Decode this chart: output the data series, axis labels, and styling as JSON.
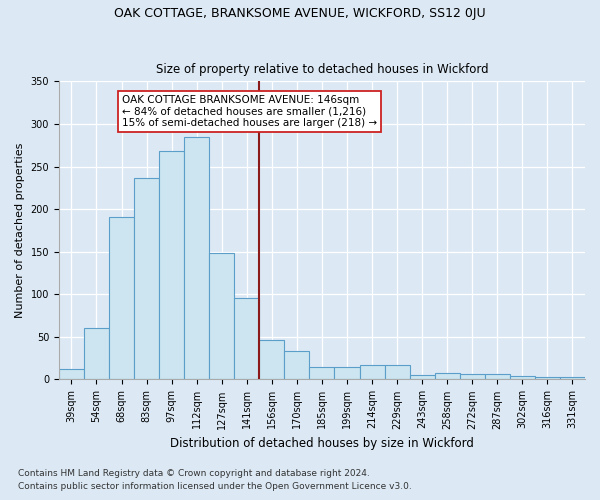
{
  "title": "OAK COTTAGE, BRANKSOME AVENUE, WICKFORD, SS12 0JU",
  "subtitle": "Size of property relative to detached houses in Wickford",
  "xlabel": "Distribution of detached houses by size in Wickford",
  "ylabel": "Number of detached properties",
  "footnote1": "Contains HM Land Registry data © Crown copyright and database right 2024.",
  "footnote2": "Contains public sector information licensed under the Open Government Licence v3.0.",
  "categories": [
    "39sqm",
    "54sqm",
    "68sqm",
    "83sqm",
    "97sqm",
    "112sqm",
    "127sqm",
    "141sqm",
    "156sqm",
    "170sqm",
    "185sqm",
    "199sqm",
    "214sqm",
    "229sqm",
    "243sqm",
    "258sqm",
    "272sqm",
    "287sqm",
    "302sqm",
    "316sqm",
    "331sqm"
  ],
  "values": [
    12,
    60,
    191,
    237,
    268,
    285,
    148,
    96,
    46,
    33,
    15,
    15,
    17,
    17,
    5,
    8,
    6,
    6,
    4,
    3,
    3
  ],
  "bar_color": "#cce5f0",
  "bar_edge_color": "#5b9ec9",
  "vline_pos": 7.5,
  "vline_color": "#8b1a1a",
  "annotation_line1": "OAK COTTAGE BRANKSOME AVENUE: 146sqm",
  "annotation_line2": "← 84% of detached houses are smaller (1,216)",
  "annotation_line3": "15% of semi-detached houses are larger (218) →",
  "ylim": [
    0,
    350
  ],
  "yticks": [
    0,
    50,
    100,
    150,
    200,
    250,
    300,
    350
  ],
  "background_color": "#dce9f5",
  "plot_bg_color": "#dce9f5",
  "title_fontsize": 9,
  "subtitle_fontsize": 8.5,
  "ylabel_fontsize": 8,
  "xlabel_fontsize": 8.5,
  "tick_fontsize": 7,
  "footnote_fontsize": 6.5
}
